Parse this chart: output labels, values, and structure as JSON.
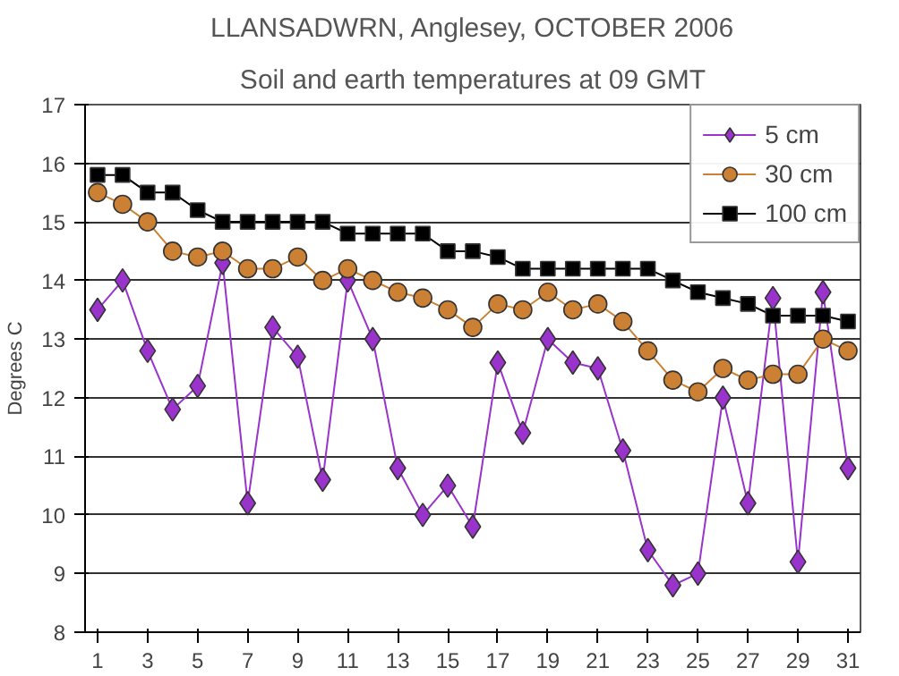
{
  "chart_data": {
    "type": "line",
    "title": "LLANSADWRN, Anglesey, OCTOBER 2006",
    "subtitle": "Soil and earth temperatures at 09 GMT",
    "ylabel": "Degrees C",
    "x": [
      1,
      2,
      3,
      4,
      5,
      6,
      7,
      8,
      9,
      10,
      11,
      12,
      13,
      14,
      15,
      16,
      17,
      18,
      19,
      20,
      21,
      22,
      23,
      24,
      25,
      26,
      27,
      28,
      29,
      30,
      31
    ],
    "xlim": [
      0.5,
      31.5
    ],
    "xticks": [
      1,
      3,
      5,
      7,
      9,
      11,
      13,
      15,
      17,
      19,
      21,
      23,
      25,
      27,
      29,
      31
    ],
    "ylim": [
      8,
      17
    ],
    "yticks": [
      8,
      9,
      10,
      11,
      12,
      13,
      14,
      15,
      16,
      17
    ],
    "grid": "y",
    "legend": "top right",
    "series": [
      {
        "name": "5 cm",
        "color": "#9933cc",
        "marker": "diamond",
        "values": [
          13.5,
          14.0,
          12.8,
          11.8,
          12.2,
          14.3,
          10.2,
          13.2,
          12.7,
          10.6,
          14.0,
          13.0,
          10.8,
          10.0,
          10.5,
          9.8,
          12.6,
          11.4,
          13.0,
          12.6,
          12.5,
          11.1,
          9.4,
          8.8,
          9.0,
          12.0,
          10.2,
          13.7,
          9.2,
          13.8,
          10.8
        ]
      },
      {
        "name": "30 cm",
        "color": "#cc8033",
        "marker": "circle",
        "values": [
          15.5,
          15.3,
          15.0,
          14.5,
          14.4,
          14.5,
          14.2,
          14.2,
          14.4,
          14.0,
          14.2,
          14.0,
          13.8,
          13.7,
          13.5,
          13.2,
          13.6,
          13.5,
          13.8,
          13.5,
          13.6,
          13.3,
          12.8,
          12.3,
          12.1,
          12.5,
          12.3,
          12.4,
          12.4,
          13.0,
          12.8
        ]
      },
      {
        "name": "100 cm",
        "color": "#000000",
        "marker": "square",
        "values": [
          15.8,
          15.8,
          15.5,
          15.5,
          15.2,
          15.0,
          15.0,
          15.0,
          15.0,
          15.0,
          14.8,
          14.8,
          14.8,
          14.8,
          14.5,
          14.5,
          14.4,
          14.2,
          14.2,
          14.2,
          14.2,
          14.2,
          14.2,
          14.0,
          13.8,
          13.7,
          13.6,
          13.4,
          13.4,
          13.4,
          13.3
        ]
      }
    ]
  }
}
